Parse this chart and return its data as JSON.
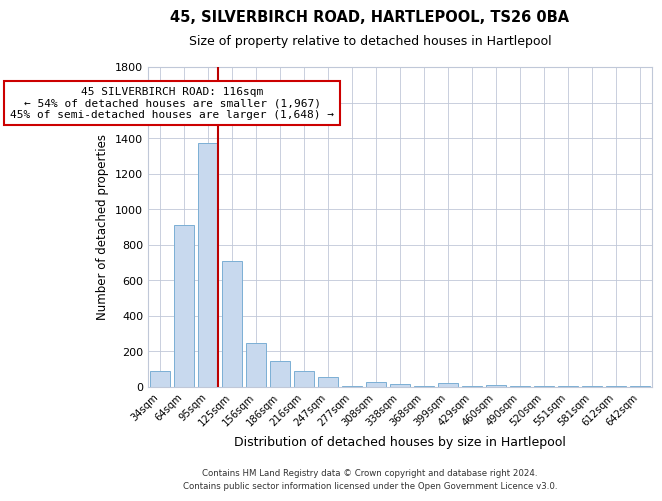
{
  "title": "45, SILVERBIRCH ROAD, HARTLEPOOL, TS26 0BA",
  "subtitle": "Size of property relative to detached houses in Hartlepool",
  "xlabel": "Distribution of detached houses by size in Hartlepool",
  "ylabel": "Number of detached properties",
  "bar_labels": [
    "34sqm",
    "64sqm",
    "95sqm",
    "125sqm",
    "156sqm",
    "186sqm",
    "216sqm",
    "247sqm",
    "277sqm",
    "308sqm",
    "338sqm",
    "368sqm",
    "399sqm",
    "429sqm",
    "460sqm",
    "490sqm",
    "520sqm",
    "551sqm",
    "581sqm",
    "612sqm",
    "642sqm"
  ],
  "bar_values": [
    90,
    910,
    1370,
    710,
    250,
    145,
    90,
    55,
    5,
    30,
    15,
    5,
    20,
    5,
    10,
    5,
    5,
    5,
    5,
    5,
    5
  ],
  "bar_color": "#c8d9ee",
  "bar_edge_color": "#7bafd4",
  "annotation_line1": "45 SILVERBIRCH ROAD: 116sqm",
  "annotation_line2": "← 54% of detached houses are smaller (1,967)",
  "annotation_line3": "45% of semi-detached houses are larger (1,648) →",
  "red_line_color": "#bb0000",
  "annotation_box_edge": "#cc0000",
  "ylim": [
    0,
    1800
  ],
  "yticks": [
    0,
    200,
    400,
    600,
    800,
    1000,
    1200,
    1400,
    1600,
    1800
  ],
  "footer1": "Contains HM Land Registry data © Crown copyright and database right 2024.",
  "footer2": "Contains public sector information licensed under the Open Government Licence v3.0.",
  "background_color": "#ffffff",
  "grid_color": "#c0c8d8"
}
